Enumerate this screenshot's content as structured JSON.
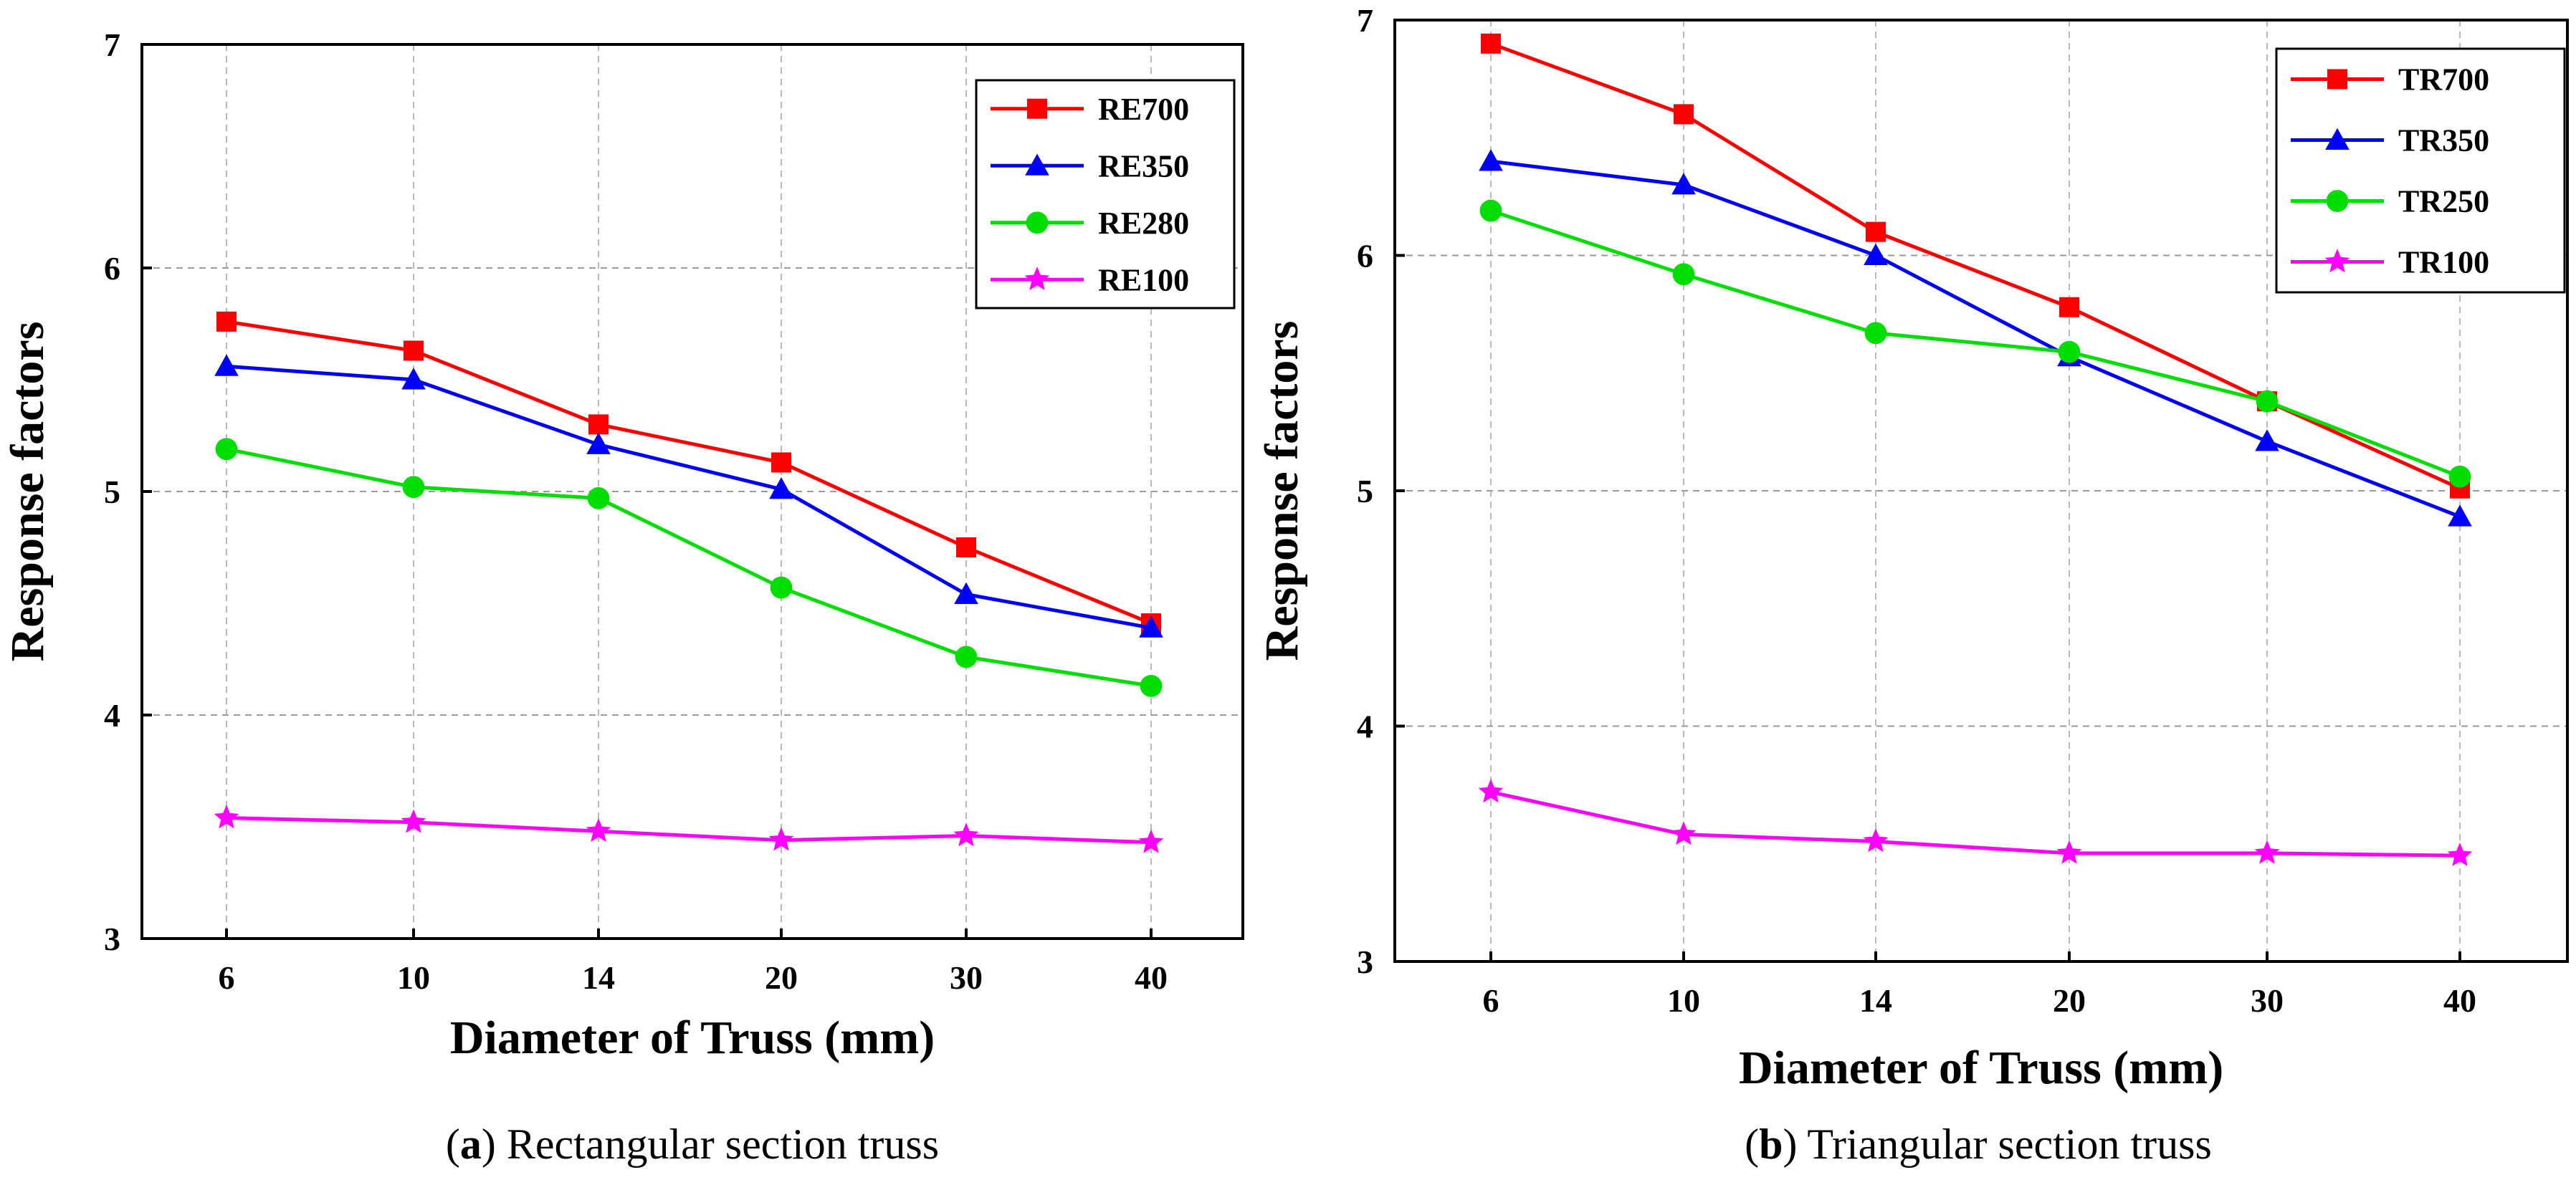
{
  "chart_data": [
    {
      "type": "line",
      "caption_letter": "a",
      "caption_text": " Rectangular section truss",
      "xlabel": "Diameter of Truss  (mm)",
      "ylabel": "Response factors",
      "categories": [
        "6",
        "10",
        "14",
        "20",
        "30",
        "40"
      ],
      "ylim": [
        3,
        7
      ],
      "yticks": [
        "3",
        "4",
        "5",
        "6",
        "7"
      ],
      "grid": true,
      "legend_position": "top-right",
      "series": [
        {
          "name": "RE700",
          "color": "#ff0000",
          "marker": "square",
          "values": [
            5.76,
            5.63,
            5.3,
            5.13,
            4.75,
            4.41
          ]
        },
        {
          "name": "RE350",
          "color": "#0000ff",
          "marker": "triangle",
          "values": [
            5.56,
            5.5,
            5.21,
            5.01,
            4.54,
            4.39
          ]
        },
        {
          "name": "RE280",
          "color": "#00dd00",
          "marker": "circle",
          "values": [
            5.19,
            5.02,
            4.97,
            4.57,
            4.26,
            4.13
          ]
        },
        {
          "name": "RE100",
          "color": "#ff00ff",
          "marker": "star",
          "values": [
            3.54,
            3.52,
            3.48,
            3.44,
            3.46,
            3.43
          ]
        }
      ]
    },
    {
      "type": "line",
      "caption_letter": "b",
      "caption_text": " Triangular section truss",
      "xlabel": "Diameter of Truss  (mm)",
      "ylabel": "Response factors",
      "categories": [
        "6",
        "10",
        "14",
        "20",
        "30",
        "40"
      ],
      "ylim": [
        3,
        7
      ],
      "yticks": [
        "3",
        "4",
        "5",
        "6",
        "7"
      ],
      "grid": true,
      "legend_position": "top-right",
      "series": [
        {
          "name": "TR700",
          "color": "#ff0000",
          "marker": "square",
          "values": [
            6.9,
            6.6,
            6.1,
            5.78,
            5.38,
            5.01
          ]
        },
        {
          "name": "TR350",
          "color": "#0000ff",
          "marker": "triangle",
          "values": [
            6.4,
            6.3,
            6.0,
            5.57,
            5.21,
            4.89
          ]
        },
        {
          "name": "TR250",
          "color": "#00dd00",
          "marker": "circle",
          "values": [
            6.19,
            5.92,
            5.67,
            5.59,
            5.38,
            5.06
          ]
        },
        {
          "name": "TR100",
          "color": "#ff00ff",
          "marker": "star",
          "values": [
            3.72,
            3.54,
            3.51,
            3.46,
            3.46,
            3.45
          ]
        }
      ]
    }
  ]
}
